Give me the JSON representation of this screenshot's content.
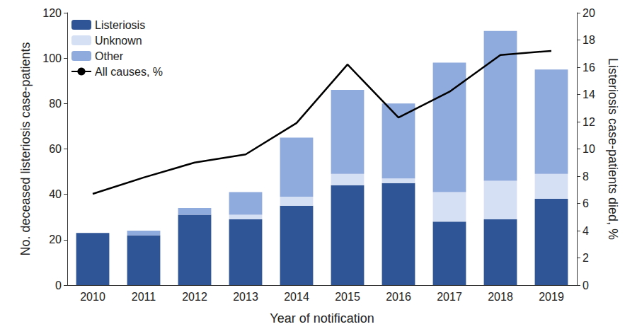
{
  "chart_data": {
    "type": "bar",
    "x_label": "Year of notification",
    "y_label": "No. deceased listeriosis case-patients",
    "y2_label": "Listeriosis case-patients died, %",
    "categories": [
      "2010",
      "2011",
      "2012",
      "2013",
      "2014",
      "2015",
      "2016",
      "2017",
      "2018",
      "2019"
    ],
    "series": [
      {
        "name": "Listeriosis",
        "type": "bar",
        "color": "#2f5597",
        "values": [
          23,
          22,
          31,
          29,
          35,
          44,
          45,
          28,
          29,
          38
        ]
      },
      {
        "name": "Unknown",
        "type": "bar",
        "color": "#d6e0f4",
        "values": [
          0,
          0,
          0,
          2,
          4,
          5,
          2,
          13,
          17,
          11
        ]
      },
      {
        "name": "Other",
        "type": "bar",
        "color": "#8faadc",
        "values": [
          0,
          2,
          3,
          10,
          26,
          37,
          33,
          57,
          66,
          46
        ]
      },
      {
        "name": "All causes, %",
        "type": "line",
        "color": "#000000",
        "axis": "y2",
        "values": [
          6.7,
          7.9,
          9.0,
          9.6,
          11.9,
          16.2,
          12.3,
          14.2,
          16.9,
          17.2
        ]
      }
    ],
    "stacked": true,
    "ylim": [
      0,
      120
    ],
    "yticks": [
      0,
      20,
      40,
      60,
      80,
      100,
      120
    ],
    "y2lim": [
      0,
      20
    ],
    "y2ticks": [
      0,
      2,
      4,
      6,
      8,
      10,
      12,
      14,
      16,
      18,
      20
    ],
    "grid": false,
    "legend": "upper left"
  }
}
